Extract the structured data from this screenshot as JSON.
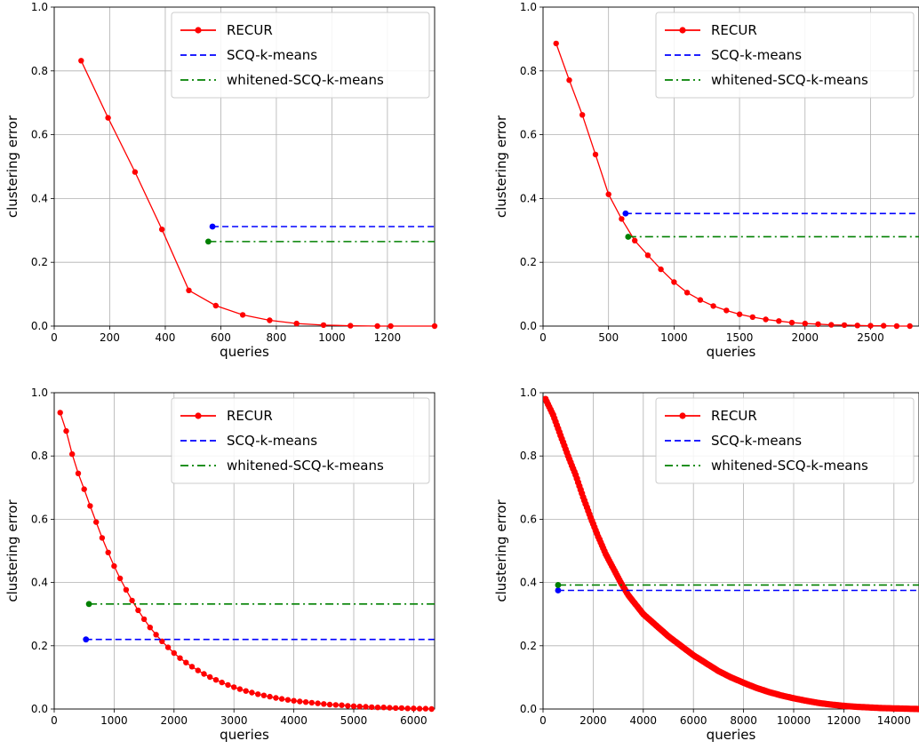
{
  "legend_labels": [
    "RECUR",
    "SCQ-k-means",
    "whitened-SCQ-k-means"
  ],
  "colors": {
    "recur": "#ff0000",
    "scq": "#0000ff",
    "whitened": "#008000",
    "grid": "#b0b0b0"
  },
  "chart_data": [
    {
      "type": "line",
      "xlabel": "queries",
      "ylabel": "clustering error",
      "xlim": [
        0,
        1370
      ],
      "ylim": [
        0,
        1.0
      ],
      "xticks": [
        "0",
        "200",
        "400",
        "600",
        "800",
        "1000",
        "1200"
      ],
      "yticks": [
        "0.0",
        "0.2",
        "0.4",
        "0.6",
        "0.8",
        "1.0"
      ],
      "grid": true,
      "legend_position": "top-right",
      "series": [
        {
          "name": "RECUR",
          "style": "solid-with-markers",
          "x": [
            97,
            194,
            291,
            388,
            485,
            582,
            679,
            776,
            873,
            970,
            1067,
            1164,
            1212,
            1370
          ],
          "y": [
            0.832,
            0.653,
            0.483,
            0.303,
            0.112,
            0.064,
            0.035,
            0.018,
            0.008,
            0.003,
            0.001,
            0.0,
            0.0,
            0.0
          ]
        },
        {
          "name": "SCQ-k-means",
          "style": "dashed",
          "start_x": 570,
          "end_x": 1370,
          "y": 0.312
        },
        {
          "name": "whitened-SCQ-k-means",
          "style": "dashdot",
          "start_x": 555,
          "end_x": 1370,
          "y": 0.265
        }
      ]
    },
    {
      "type": "line",
      "xlabel": "queries",
      "ylabel": "clustering error",
      "xlim": [
        0,
        2870
      ],
      "ylim": [
        0,
        1.0
      ],
      "xticks": [
        "0",
        "500",
        "1000",
        "1500",
        "2000",
        "2500"
      ],
      "yticks": [
        "0.0",
        "0.2",
        "0.4",
        "0.6",
        "0.8",
        "1.0"
      ],
      "grid": true,
      "legend_position": "top-right",
      "series": [
        {
          "name": "RECUR",
          "style": "solid-with-markers",
          "x": [
            100,
            200,
            300,
            400,
            500,
            600,
            700,
            800,
            900,
            1000,
            1100,
            1200,
            1300,
            1400,
            1500,
            1600,
            1700,
            1800,
            1900,
            2000,
            2100,
            2200,
            2300,
            2400,
            2500,
            2600,
            2700,
            2800
          ],
          "y": [
            0.886,
            0.771,
            0.662,
            0.538,
            0.413,
            0.336,
            0.268,
            0.222,
            0.178,
            0.138,
            0.105,
            0.082,
            0.063,
            0.049,
            0.037,
            0.028,
            0.021,
            0.016,
            0.011,
            0.008,
            0.006,
            0.004,
            0.003,
            0.002,
            0.001,
            0.001,
            0.0,
            0.0
          ]
        },
        {
          "name": "SCQ-k-means",
          "style": "dashed",
          "start_x": 630,
          "end_x": 2870,
          "y": 0.353
        },
        {
          "name": "whitened-SCQ-k-means",
          "style": "dashdot",
          "start_x": 650,
          "end_x": 2870,
          "y": 0.28
        }
      ]
    },
    {
      "type": "line",
      "xlabel": "queries",
      "ylabel": "clustering error",
      "xlim": [
        0,
        6350
      ],
      "ylim": [
        0,
        1.0
      ],
      "xticks": [
        "0",
        "1000",
        "2000",
        "3000",
        "4000",
        "5000",
        "6000"
      ],
      "yticks": [
        "0.0",
        "0.2",
        "0.4",
        "0.6",
        "0.8",
        "1.0"
      ],
      "grid": true,
      "legend_position": "top-right",
      "series": [
        {
          "name": "RECUR",
          "style": "solid-with-markers",
          "x": [
            100,
            200,
            300,
            400,
            500,
            600,
            700,
            800,
            900,
            1000,
            1100,
            1200,
            1300,
            1400,
            1500,
            1600,
            1700,
            1800,
            1900,
            2000,
            2100,
            2200,
            2300,
            2400,
            2500,
            2600,
            2700,
            2800,
            2900,
            3000,
            3100,
            3200,
            3300,
            3400,
            3500,
            3600,
            3700,
            3800,
            3900,
            4000,
            4100,
            4200,
            4300,
            4400,
            4500,
            4600,
            4700,
            4800,
            4900,
            5000,
            5100,
            5200,
            5300,
            5400,
            5500,
            5600,
            5700,
            5800,
            5900,
            6000,
            6100,
            6200,
            6300
          ],
          "y": [
            0.937,
            0.879,
            0.806,
            0.745,
            0.695,
            0.642,
            0.591,
            0.541,
            0.495,
            0.452,
            0.413,
            0.377,
            0.343,
            0.312,
            0.284,
            0.258,
            0.235,
            0.214,
            0.195,
            0.177,
            0.161,
            0.147,
            0.134,
            0.122,
            0.111,
            0.101,
            0.092,
            0.084,
            0.076,
            0.069,
            0.063,
            0.057,
            0.052,
            0.047,
            0.043,
            0.039,
            0.035,
            0.032,
            0.029,
            0.026,
            0.024,
            0.022,
            0.02,
            0.018,
            0.016,
            0.014,
            0.013,
            0.012,
            0.01,
            0.009,
            0.008,
            0.007,
            0.006,
            0.005,
            0.005,
            0.004,
            0.003,
            0.003,
            0.002,
            0.002,
            0.001,
            0.001,
            0.0
          ]
        },
        {
          "name": "SCQ-k-means",
          "style": "dashed",
          "start_x": 530,
          "end_x": 6350,
          "y": 0.22
        },
        {
          "name": "whitened-SCQ-k-means",
          "style": "dashdot",
          "start_x": 580,
          "end_x": 6350,
          "y": 0.332
        }
      ]
    },
    {
      "type": "line",
      "xlabel": "queries",
      "ylabel": "clustering error",
      "xlim": [
        0,
        15000
      ],
      "ylim": [
        0,
        1.0
      ],
      "xticks": [
        "0",
        "2000",
        "4000",
        "6000",
        "8000",
        "10000",
        "12000",
        "14000"
      ],
      "yticks": [
        "0.0",
        "0.2",
        "0.4",
        "0.6",
        "0.8",
        "1.0"
      ],
      "grid": true,
      "legend_position": "top-right",
      "series": [
        {
          "name": "RECUR",
          "style": "solid-with-markers",
          "x": [
            100,
            400,
            700,
            1000,
            1300,
            1600,
            1900,
            2200,
            2500,
            2800,
            3100,
            3400,
            3700,
            4000,
            4500,
            5000,
            5500,
            6000,
            6500,
            7000,
            7500,
            8000,
            8500,
            9000,
            9500,
            10000,
            10500,
            11000,
            11500,
            12000,
            12500,
            13000,
            13500,
            14000,
            14500,
            15000
          ],
          "y": [
            0.98,
            0.93,
            0.865,
            0.8,
            0.74,
            0.67,
            0.605,
            0.545,
            0.49,
            0.445,
            0.4,
            0.36,
            0.33,
            0.3,
            0.265,
            0.23,
            0.2,
            0.17,
            0.145,
            0.12,
            0.1,
            0.083,
            0.067,
            0.054,
            0.043,
            0.034,
            0.026,
            0.019,
            0.014,
            0.01,
            0.007,
            0.005,
            0.003,
            0.002,
            0.001,
            0.0
          ],
          "marker_every": 50
        },
        {
          "name": "SCQ-k-means",
          "style": "dashed",
          "start_x": 600,
          "end_x": 15000,
          "y": 0.375
        },
        {
          "name": "whitened-SCQ-k-means",
          "style": "dashdot",
          "start_x": 600,
          "end_x": 15000,
          "y": 0.392
        }
      ]
    }
  ]
}
